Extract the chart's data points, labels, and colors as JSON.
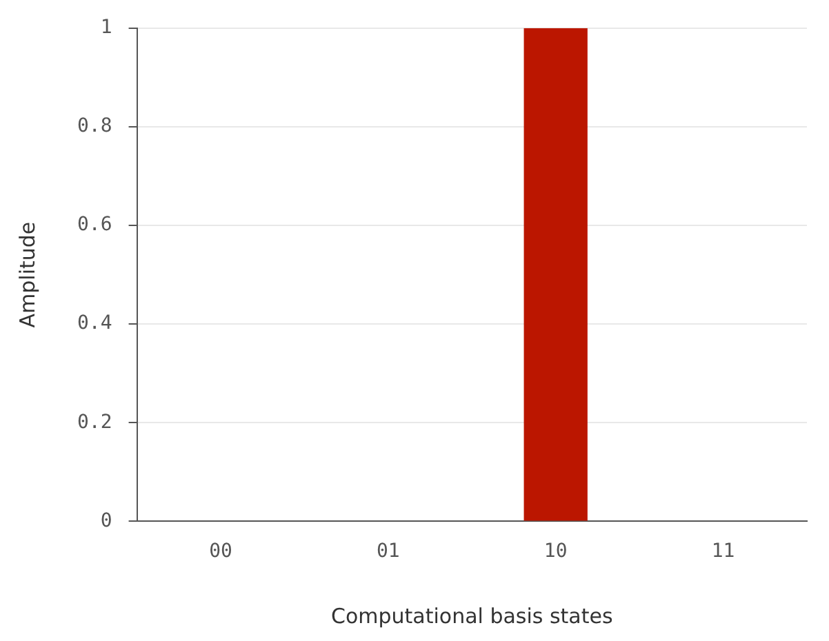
{
  "chart_data": {
    "type": "bar",
    "xlabel": "Computational basis states",
    "ylabel": "Amplitude",
    "categories": [
      "00",
      "01",
      "10",
      "11"
    ],
    "values": [
      0,
      0,
      1,
      0
    ],
    "color": "#bb1600",
    "ylim": [
      0,
      1
    ],
    "yticks": [
      0,
      0.2,
      0.4,
      0.6,
      0.8,
      1
    ],
    "grid": "y",
    "legend": false
  }
}
